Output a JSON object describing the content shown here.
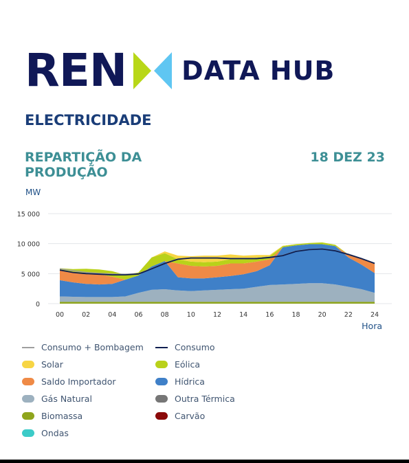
{
  "brand": {
    "name": "REN",
    "product": "DATA HUB"
  },
  "section_title": "ELECTRICIDADE",
  "chart_title": "REPARTIÇÃO DA PRODUÇÃO",
  "chart_date": "18 DEZ 23",
  "unit_label": "MW",
  "chart_data": {
    "type": "area",
    "title": "REPARTIÇÃO DA PRODUÇÃO",
    "xlabel": "Hora",
    "ylabel": "MW",
    "x": [
      0,
      1,
      2,
      3,
      4,
      5,
      6,
      7,
      8,
      9,
      10,
      11,
      12,
      13,
      14,
      15,
      16,
      17,
      18,
      19,
      20,
      21,
      22,
      23,
      24
    ],
    "x_ticks": [
      "00",
      "02",
      "04",
      "06",
      "08",
      "10",
      "12",
      "14",
      "16",
      "18",
      "20",
      "22",
      "24"
    ],
    "x_tick_values": [
      0,
      2,
      4,
      6,
      8,
      10,
      12,
      14,
      16,
      18,
      20,
      22,
      24
    ],
    "y_ticks": [
      "0",
      "5 000",
      "10 000",
      "15 000"
    ],
    "y_tick_values": [
      0,
      5000,
      10000,
      15000
    ],
    "xlim": [
      0,
      24
    ],
    "ylim": [
      0,
      15000
    ],
    "grid": true,
    "stacked": true,
    "series": [
      {
        "name": "Biomassa",
        "color": "#8fa51c",
        "values": [
          300,
          300,
          300,
          300,
          300,
          300,
          300,
          300,
          300,
          300,
          300,
          300,
          300,
          300,
          300,
          300,
          300,
          300,
          300,
          300,
          300,
          300,
          300,
          300,
          300
        ]
      },
      {
        "name": "Gás Natural",
        "color": "#9db1bf",
        "values": [
          900,
          850,
          800,
          800,
          800,
          900,
          1500,
          2000,
          2100,
          1900,
          1800,
          1900,
          2000,
          2100,
          2200,
          2500,
          2800,
          2900,
          3000,
          3100,
          3100,
          2900,
          2500,
          2100,
          1500
        ]
      },
      {
        "name": "Hídrica",
        "color": "#3f80c8",
        "values": [
          2700,
          2400,
          2200,
          2100,
          2200,
          2800,
          2900,
          3900,
          4700,
          2200,
          2100,
          2000,
          2100,
          2200,
          2400,
          2600,
          3300,
          6200,
          6400,
          6500,
          6500,
          6400,
          4900,
          4100,
          3300
        ]
      },
      {
        "name": "Saldo Importador",
        "color": "#ef8a46",
        "values": [
          1700,
          1700,
          1700,
          1700,
          1200,
          0,
          0,
          0,
          0,
          2300,
          2100,
          2000,
          1900,
          2100,
          1800,
          1600,
          1000,
          0,
          0,
          0,
          0,
          0,
          500,
          1000,
          1500
        ]
      },
      {
        "name": "Eólica",
        "color": "#b9d11a",
        "values": [
          300,
          500,
          800,
          800,
          900,
          800,
          500,
          1500,
          1300,
          700,
          700,
          700,
          700,
          700,
          700,
          700,
          500,
          200,
          200,
          200,
          300,
          200,
          0,
          0,
          0
        ]
      },
      {
        "name": "Solar",
        "color": "#f7d544",
        "values": [
          0,
          0,
          0,
          0,
          0,
          0,
          0,
          0,
          300,
          600,
          900,
          1100,
          1000,
          800,
          600,
          400,
          200,
          50,
          0,
          0,
          0,
          0,
          0,
          0,
          0
        ]
      },
      {
        "name": "Outra Térmica",
        "color": "#767676",
        "values": [
          0,
          0,
          0,
          0,
          0,
          0,
          0,
          0,
          0,
          0,
          0,
          0,
          0,
          0,
          0,
          0,
          0,
          0,
          0,
          0,
          0,
          0,
          0,
          0,
          0
        ]
      },
      {
        "name": "Carvão",
        "color": "#8b0a0a",
        "values": [
          0,
          0,
          0,
          0,
          0,
          0,
          0,
          0,
          0,
          0,
          0,
          0,
          0,
          0,
          0,
          0,
          0,
          0,
          0,
          0,
          0,
          0,
          0,
          0,
          0
        ]
      },
      {
        "name": "Ondas",
        "color": "#3ccbc8",
        "values": [
          0,
          0,
          0,
          0,
          0,
          0,
          0,
          0,
          0,
          0,
          0,
          0,
          0,
          0,
          0,
          0,
          0,
          0,
          0,
          0,
          0,
          0,
          0,
          0,
          0
        ]
      }
    ],
    "lines": [
      {
        "name": "Consumo",
        "color": "#0e1e50",
        "values": [
          5600,
          5200,
          5000,
          4900,
          4800,
          4800,
          4950,
          5800,
          6700,
          7400,
          7600,
          7600,
          7600,
          7500,
          7500,
          7500,
          7700,
          8000,
          8700,
          9000,
          9100,
          8800,
          8200,
          7500,
          6700
        ]
      },
      {
        "name": "Consumo + Bombagem",
        "color": "#9e9e9e",
        "values": [
          5800,
          5500,
          5200,
          5050,
          4950,
          4900,
          5000,
          5850,
          6750,
          7450,
          7650,
          7650,
          7650,
          7550,
          7550,
          7550,
          7750,
          8050,
          8750,
          9050,
          9150,
          8850,
          8250,
          7550,
          6750
        ]
      }
    ],
    "legend": [
      {
        "name": "Consumo + Bombagem",
        "kind": "line",
        "color": "#9e9e9e"
      },
      {
        "name": "Consumo",
        "kind": "line",
        "color": "#0e1e50"
      },
      {
        "name": "Solar",
        "kind": "area",
        "color": "#f7d544"
      },
      {
        "name": "Eólica",
        "kind": "area",
        "color": "#b9d11a"
      },
      {
        "name": "Saldo Importador",
        "kind": "area",
        "color": "#ef8a46"
      },
      {
        "name": "Hídrica",
        "kind": "area",
        "color": "#3f80c8"
      },
      {
        "name": "Gás Natural",
        "kind": "area",
        "color": "#9db1bf"
      },
      {
        "name": "Outra Térmica",
        "kind": "area",
        "color": "#767676"
      },
      {
        "name": "Biomassa",
        "kind": "area",
        "color": "#8fa51c"
      },
      {
        "name": "Carvão",
        "kind": "area",
        "color": "#8b0a0a"
      },
      {
        "name": "Ondas",
        "kind": "area",
        "color": "#3ccbc8"
      }
    ],
    "legend_placement": "bottom"
  }
}
